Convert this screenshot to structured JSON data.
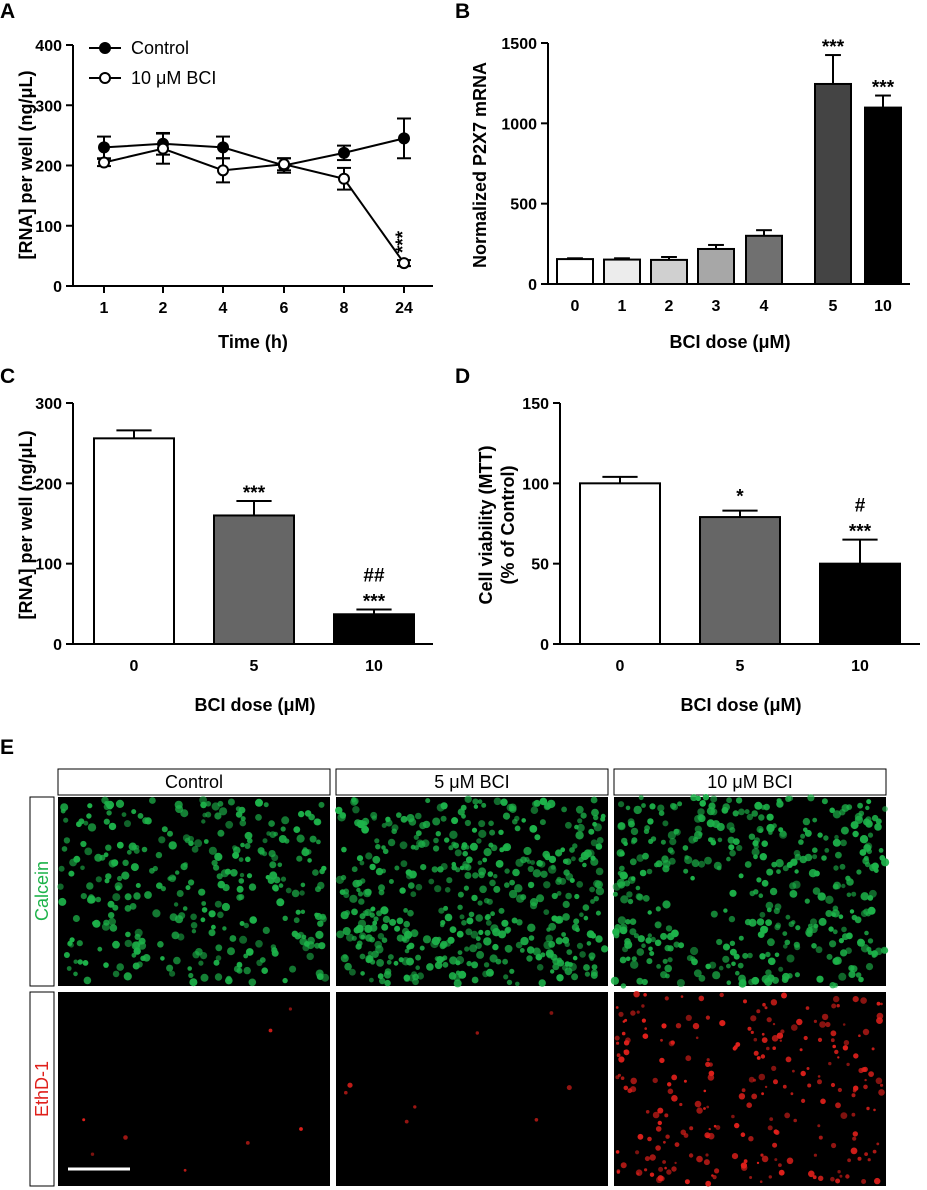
{
  "panels": {
    "A": "A",
    "B": "B",
    "C": "C",
    "D": "D",
    "E": "E"
  },
  "chart_data": [
    {
      "panel": "A",
      "type": "line",
      "xlabel": "Time (h)",
      "ylabel": "[RNA] per well (ng/μL)",
      "categories": [
        "1",
        "2",
        "4",
        "6",
        "8",
        "24"
      ],
      "ylim": [
        0,
        400
      ],
      "yticks": [
        "0",
        "100",
        "200",
        "300",
        "400"
      ],
      "legend_position": "top-left",
      "series": [
        {
          "name": "Control",
          "marker": "filled-circle",
          "values": [
            230,
            236,
            230,
            200,
            221,
            245
          ],
          "errors": [
            18,
            18,
            18,
            12,
            12,
            33
          ]
        },
        {
          "name": "10 μM BCI",
          "marker": "open-circle",
          "values": [
            205,
            228,
            192,
            202,
            178,
            38
          ],
          "errors": [
            6,
            25,
            20,
            10,
            18,
            5
          ]
        }
      ],
      "annotations": [
        {
          "category": "24",
          "series": "10 μM BCI",
          "text": "***"
        }
      ]
    },
    {
      "panel": "B",
      "type": "bar",
      "xlabel": "BCI dose (μM)",
      "ylabel": "Normalized P2X7 mRNA",
      "categories": [
        "0",
        "1",
        "2",
        "3",
        "4",
        "5",
        "10"
      ],
      "values": [
        155,
        152,
        150,
        218,
        300,
        1245,
        1098
      ],
      "errors": [
        5,
        8,
        18,
        25,
        35,
        180,
        75
      ],
      "colors": [
        "#ffffff",
        "#ececec",
        "#d0d0d0",
        "#a7a7a7",
        "#707070",
        "#444444",
        "#000000"
      ],
      "ylim": [
        0,
        1500
      ],
      "yticks": [
        "0",
        "500",
        "1000",
        "1500"
      ],
      "significance": [
        "",
        "",
        "",
        "",
        "",
        "***",
        "***"
      ]
    },
    {
      "panel": "C",
      "type": "bar",
      "xlabel": "BCI dose (μM)",
      "ylabel": "[RNA] per well (ng/μL)",
      "categories": [
        "0",
        "5",
        "10"
      ],
      "values": [
        256,
        160,
        37
      ],
      "errors": [
        10,
        18,
        6
      ],
      "colors": [
        "#ffffff",
        "#666666",
        "#000000"
      ],
      "ylim": [
        0,
        300
      ],
      "yticks": [
        "0",
        "100",
        "200",
        "300"
      ],
      "significance": [
        "",
        "***",
        "***"
      ],
      "significance2": [
        "",
        "",
        "##"
      ]
    },
    {
      "panel": "D",
      "type": "bar",
      "xlabel": "BCI dose (μM)",
      "ylabel_line1": "Cell viability (MTT)",
      "ylabel_line2": "(% of Control)",
      "categories": [
        "0",
        "5",
        "10"
      ],
      "values": [
        100,
        79,
        50
      ],
      "errors": [
        4,
        4,
        15
      ],
      "colors": [
        "#ffffff",
        "#666666",
        "#000000"
      ],
      "ylim": [
        0,
        150
      ],
      "yticks": [
        "0",
        "50",
        "100",
        "150"
      ],
      "significance": [
        "",
        "*",
        "***"
      ],
      "significance2": [
        "",
        "",
        "#"
      ]
    }
  ],
  "micrographs": {
    "columns": [
      "Control",
      "5 μM BCI",
      "10 μM BCI"
    ],
    "rows": [
      {
        "label": "Calcein",
        "color": "#1db34a"
      },
      {
        "label": "EthD-1",
        "color": "#e0201b"
      }
    ]
  }
}
